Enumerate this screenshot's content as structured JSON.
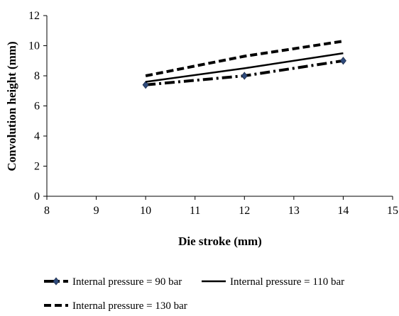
{
  "chart_data": {
    "type": "line",
    "title": "",
    "xlabel": "Die stroke (mm)",
    "ylabel": "Convolution height (mm)",
    "xlim": [
      8,
      15
    ],
    "ylim": [
      0,
      12
    ],
    "xticks": [
      8,
      9,
      10,
      11,
      12,
      13,
      14,
      15
    ],
    "yticks": [
      0,
      2,
      4,
      6,
      8,
      10,
      12
    ],
    "grid": false,
    "legend_position": "bottom",
    "series": [
      {
        "name": "Internal pressure = 90 bar",
        "style": "dash-dot",
        "marker": "diamond",
        "color": "#000000",
        "marker_color": "#2f4b7c",
        "x": [
          10,
          12,
          14
        ],
        "y": [
          7.4,
          8.0,
          9.0
        ]
      },
      {
        "name": "Internal pressure = 110 bar",
        "style": "solid",
        "marker": "none",
        "color": "#000000",
        "x": [
          10,
          12,
          14
        ],
        "y": [
          7.6,
          8.5,
          9.5
        ]
      },
      {
        "name": "Internal pressure = 130 bar",
        "style": "dashed",
        "marker": "none",
        "color": "#000000",
        "x": [
          10,
          12,
          14
        ],
        "y": [
          8.0,
          9.3,
          10.3
        ]
      }
    ]
  }
}
